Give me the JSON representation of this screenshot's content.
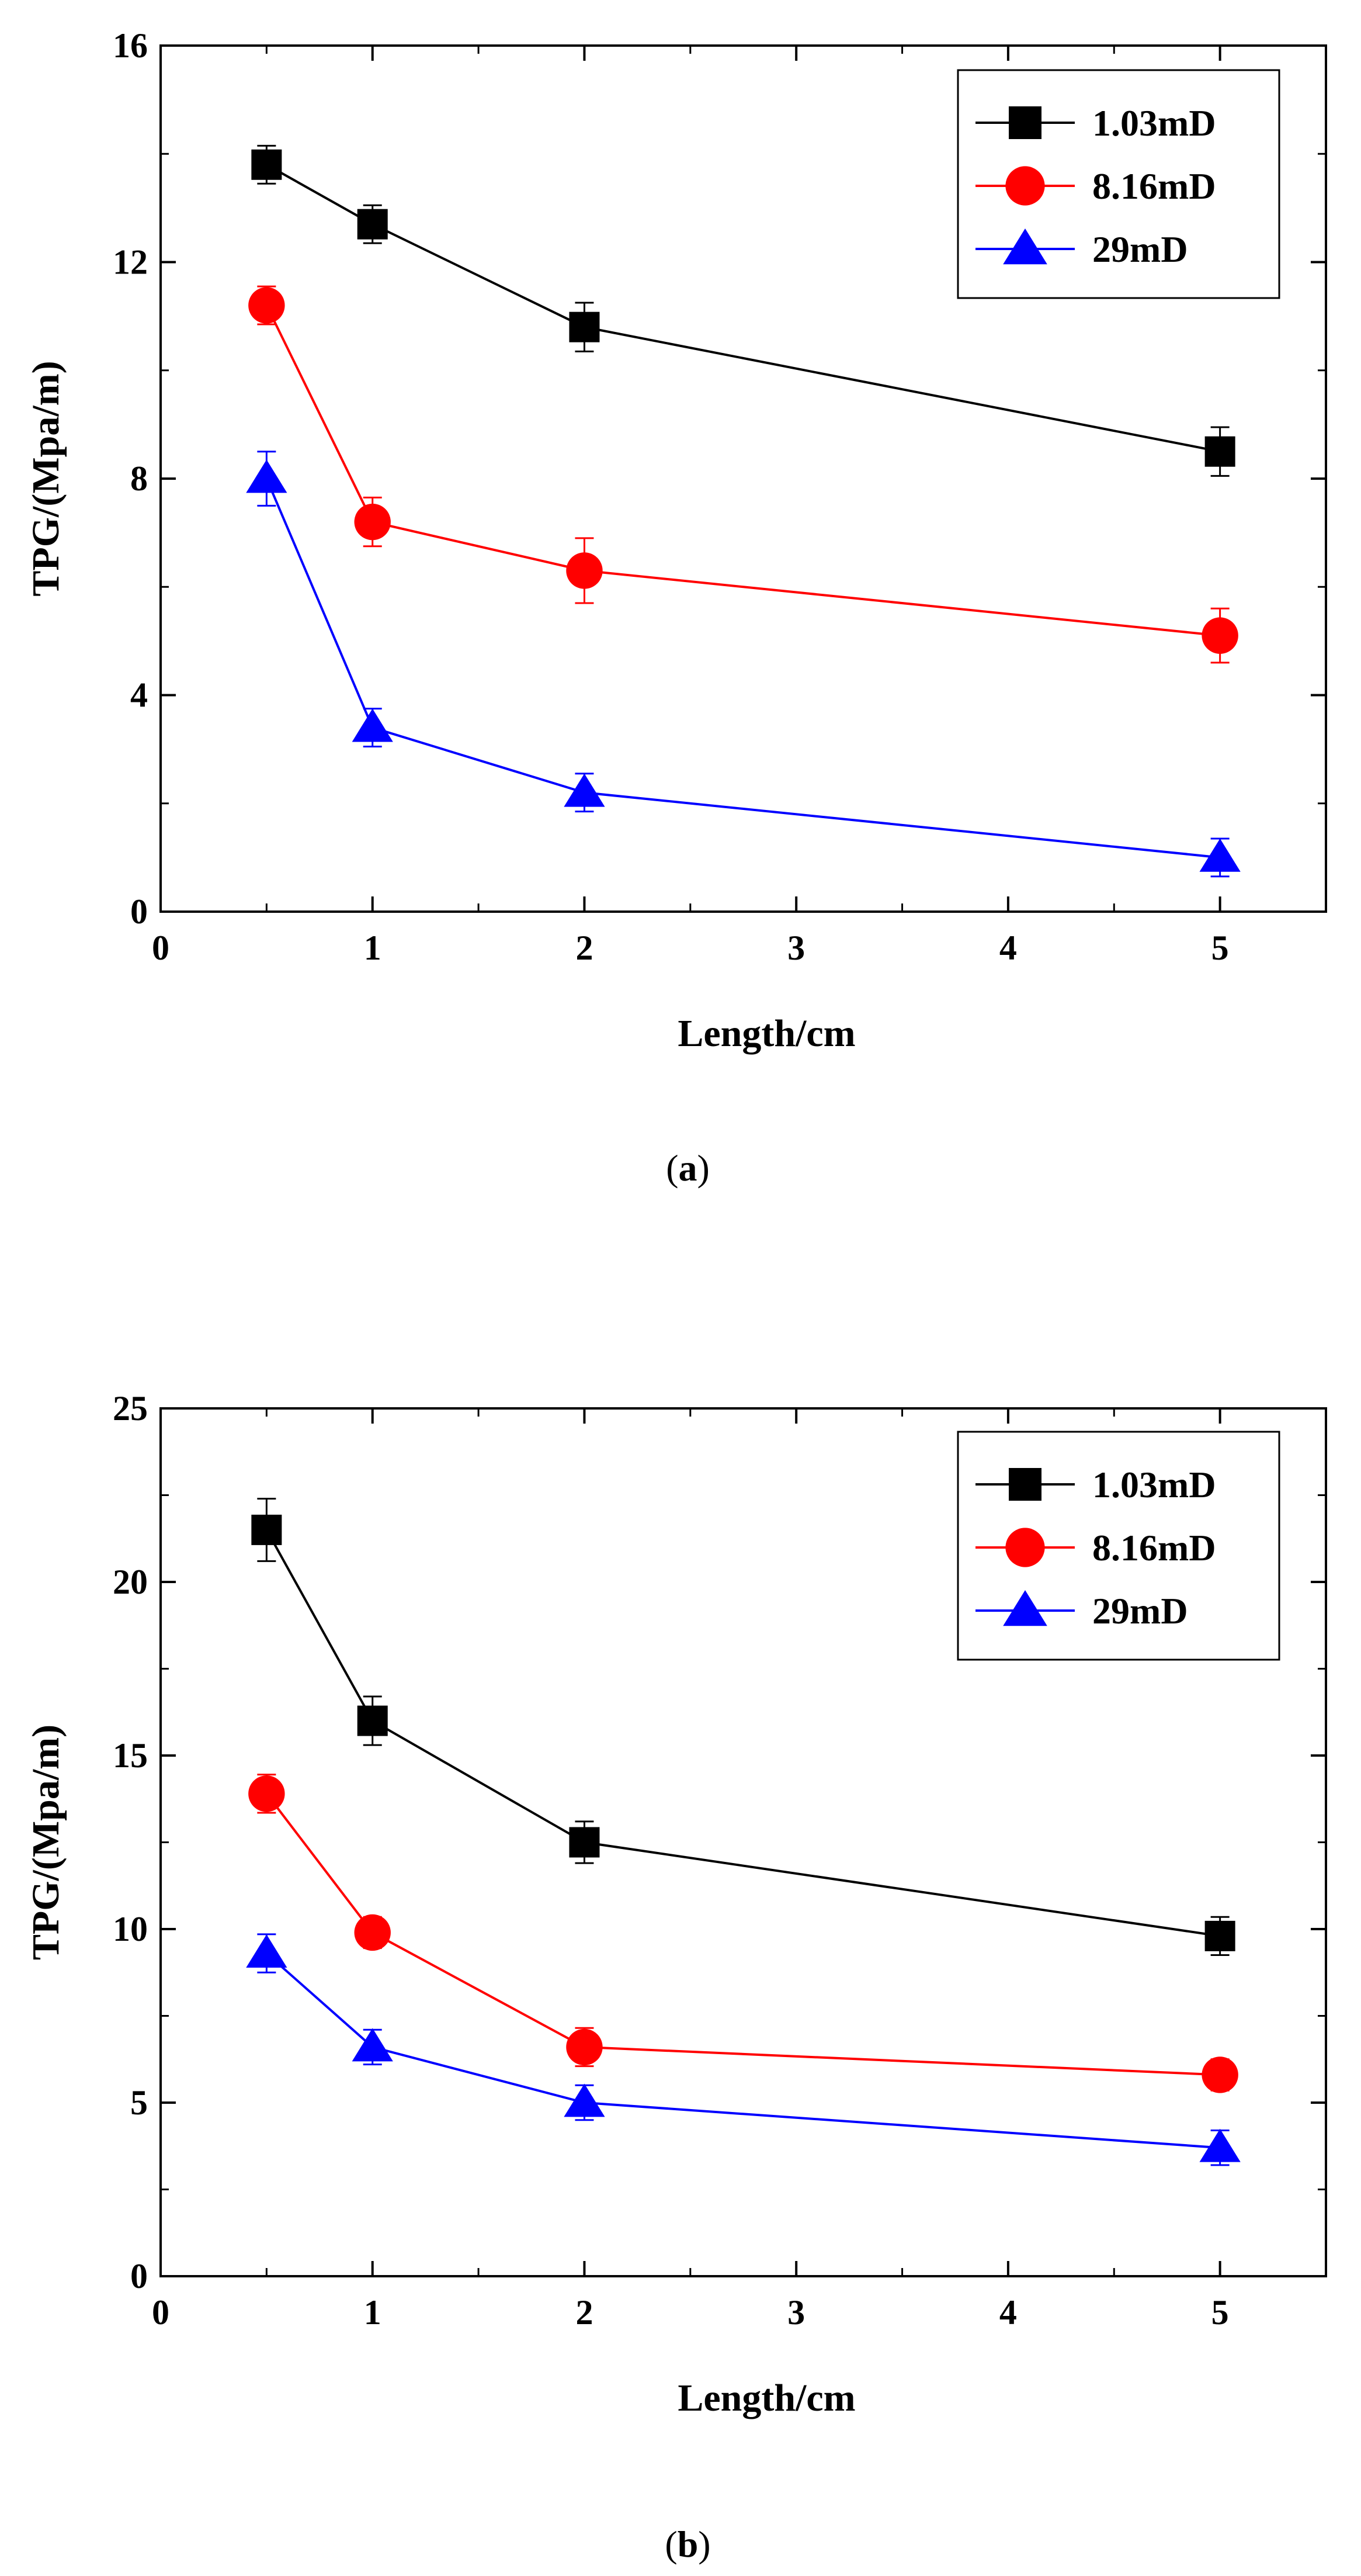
{
  "chart_data": [
    {
      "type": "line",
      "caption": "a",
      "xlabel": "Length/cm",
      "ylabel": "TPG/(Mpa/m)",
      "xlim": [
        0,
        5.5
      ],
      "ylim": [
        0,
        16
      ],
      "xticks": [
        0,
        1,
        2,
        3,
        4,
        5
      ],
      "yticks": [
        0,
        4,
        8,
        12,
        16
      ],
      "legend_position": "top-right",
      "series": [
        {
          "name": "1.03mD",
          "color": "#000000",
          "marker": "square",
          "x": [
            0.5,
            1,
            2,
            5
          ],
          "values": [
            13.8,
            12.7,
            10.8,
            8.5
          ],
          "errors": [
            0.35,
            0.35,
            0.45,
            0.45
          ]
        },
        {
          "name": "8.16mD",
          "color": "#ff0000",
          "marker": "circle",
          "x": [
            0.5,
            1,
            2,
            5
          ],
          "values": [
            11.2,
            7.2,
            6.3,
            5.1
          ],
          "errors": [
            0.35,
            0.45,
            0.6,
            0.5
          ]
        },
        {
          "name": "29mD",
          "color": "#0000ff",
          "marker": "triangle",
          "x": [
            0.5,
            1,
            2,
            5
          ],
          "values": [
            8.0,
            3.4,
            2.2,
            1.0
          ],
          "errors": [
            0.5,
            0.35,
            0.35,
            0.35
          ]
        }
      ]
    },
    {
      "type": "line",
      "caption": "b",
      "xlabel": "Length/cm",
      "ylabel": "TPG/(Mpa/m)",
      "xlim": [
        0,
        5.5
      ],
      "ylim": [
        0,
        25
      ],
      "xticks": [
        0,
        1,
        2,
        3,
        4,
        5
      ],
      "yticks": [
        0,
        5,
        10,
        15,
        20,
        25
      ],
      "legend_position": "top-right",
      "series": [
        {
          "name": "1.03mD",
          "color": "#000000",
          "marker": "square",
          "x": [
            0.5,
            1,
            2,
            5
          ],
          "values": [
            21.5,
            16.0,
            12.5,
            9.8
          ],
          "errors": [
            0.9,
            0.7,
            0.6,
            0.55
          ]
        },
        {
          "name": "8.16mD",
          "color": "#ff0000",
          "marker": "circle",
          "x": [
            0.5,
            1,
            2,
            5
          ],
          "values": [
            13.9,
            9.9,
            6.6,
            5.8
          ],
          "errors": [
            0.55,
            0.45,
            0.55,
            0.45
          ]
        },
        {
          "name": "29mD",
          "color": "#0000ff",
          "marker": "triangle",
          "x": [
            0.5,
            1,
            2,
            5
          ],
          "values": [
            9.3,
            6.6,
            5.0,
            3.7
          ],
          "errors": [
            0.55,
            0.5,
            0.5,
            0.5
          ]
        }
      ]
    }
  ]
}
